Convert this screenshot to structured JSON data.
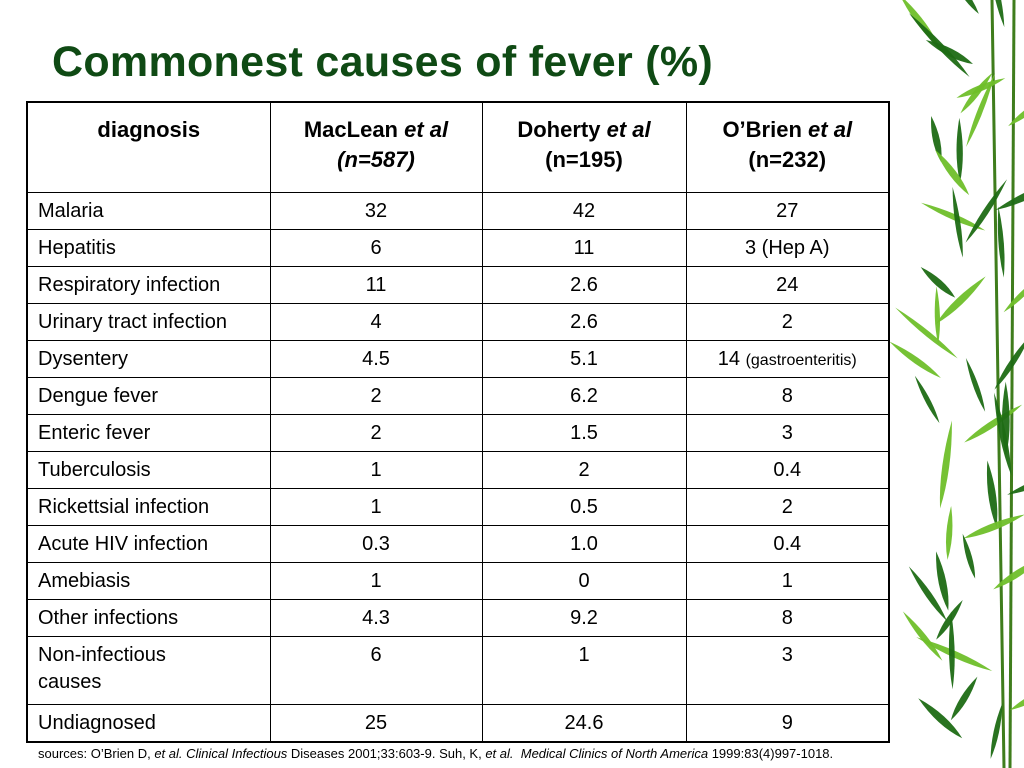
{
  "title": "Commonest causes of fever (%)",
  "table": {
    "headers": [
      {
        "name": "diagnosis"
      },
      {
        "name": "MacLean",
        "etal": "et al",
        "n": "(n=587)"
      },
      {
        "name": "Doherty",
        "etal": "et al",
        "n": "(n=195)"
      },
      {
        "name": "O’Brien",
        "etal": "et al",
        "n": "(n=232)"
      }
    ],
    "rows": [
      {
        "diagnosis": "Malaria",
        "maclean": "32",
        "doherty": "42",
        "obrien": "27",
        "obrien_note": ""
      },
      {
        "diagnosis": "Hepatitis",
        "maclean": "6",
        "doherty": "11",
        "obrien": "3 (Hep A)",
        "obrien_note": ""
      },
      {
        "diagnosis": "Respiratory infection",
        "maclean": "11",
        "doherty": "2.6",
        "obrien": "24",
        "obrien_note": ""
      },
      {
        "diagnosis": "Urinary tract infection",
        "maclean": "4",
        "doherty": "2.6",
        "obrien": "2",
        "obrien_note": ""
      },
      {
        "diagnosis": "Dysentery",
        "maclean": "4.5",
        "doherty": "5.1",
        "obrien": "14",
        "obrien_note": "(gastroenteritis)"
      },
      {
        "diagnosis": "Dengue fever",
        "maclean": "2",
        "doherty": "6.2",
        "obrien": "8",
        "obrien_note": ""
      },
      {
        "diagnosis": "Enteric fever",
        "maclean": "2",
        "doherty": "1.5",
        "obrien": "3",
        "obrien_note": ""
      },
      {
        "diagnosis": "Tuberculosis",
        "maclean": "1",
        "doherty": "2",
        "obrien": "0.4",
        "obrien_note": ""
      },
      {
        "diagnosis": "Rickettsial infection",
        "maclean": "1",
        "doherty": "0.5",
        "obrien": "2",
        "obrien_note": ""
      },
      {
        "diagnosis": "Acute HIV infection",
        "maclean": "0.3",
        "doherty": "1.0",
        "obrien": "0.4",
        "obrien_note": ""
      },
      {
        "diagnosis": "Amebiasis",
        "maclean": "1",
        "doherty": "0",
        "obrien": "1",
        "obrien_note": ""
      },
      {
        "diagnosis": "Other infections",
        "maclean": "4.3",
        "doherty": "9.2",
        "obrien": "8",
        "obrien_note": ""
      },
      {
        "diagnosis": "Non-infectious causes",
        "maclean": "6",
        "doherty": "1",
        "obrien": "3",
        "obrien_note": ""
      },
      {
        "diagnosis": "Undiagnosed",
        "maclean": "25",
        "doherty": "24.6",
        "obrien": "9",
        "obrien_note": ""
      }
    ]
  },
  "sources": {
    "prefix": "sources: O’Brien D, ",
    "etal1": "et al.",
    "journal1": "Clinical Infectious",
    "mid1": " Diseases 2001;33:603-9. Suh, K, ",
    "etal2": "et al.",
    "journal2": "Medical Clinics of North America",
    "suffix": " 1999:83(4)997-1018."
  },
  "colors": {
    "title": "#0f4a14",
    "bamboo_dark": "#1e6b14",
    "bamboo_light": "#6fbf2a"
  },
  "decoration": {
    "icon": "bamboo-leaves-icon"
  }
}
